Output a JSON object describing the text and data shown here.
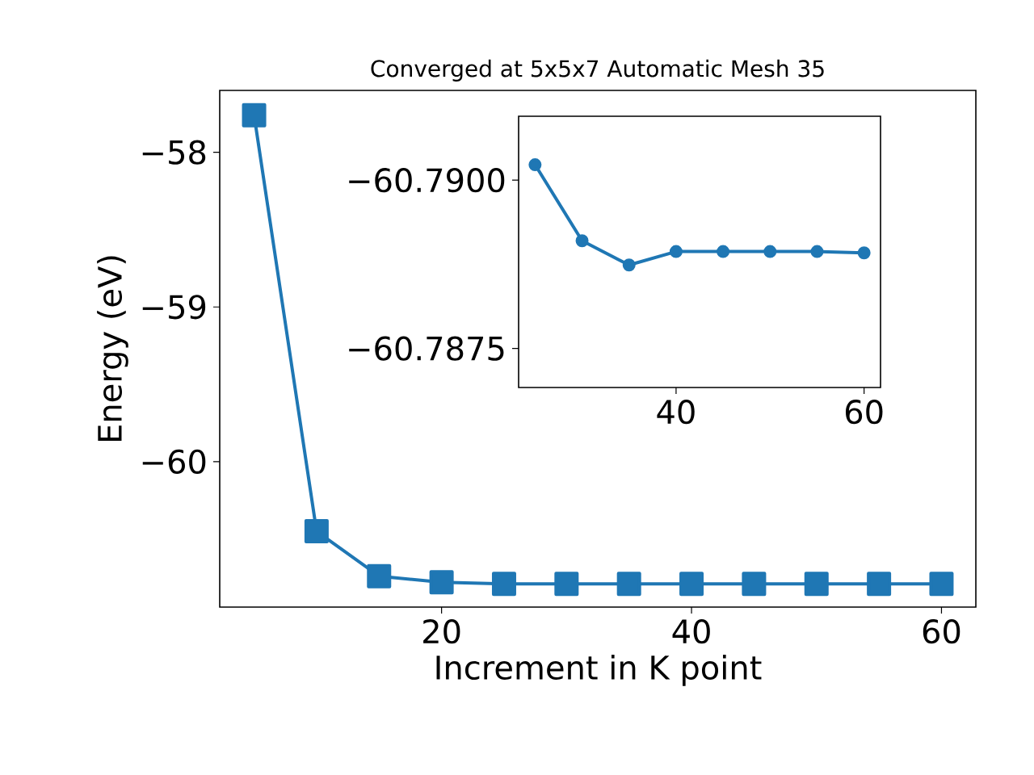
{
  "chart_data": [
    {
      "type": "line",
      "title": "Converged at 5x5x7 Automatic Mesh 35",
      "xlabel": "Increment in K point",
      "ylabel": "Energy (eV)",
      "marker": "square",
      "color": "#1f77b4",
      "x": [
        5,
        10,
        15,
        20,
        25,
        30,
        35,
        40,
        45,
        50,
        55,
        60
      ],
      "values": [
        -57.76,
        -60.45,
        -60.74,
        -60.78,
        -60.79,
        -60.79,
        -60.79,
        -60.79,
        -60.79,
        -60.79,
        -60.79,
        -60.79
      ],
      "xlim": [
        2.25,
        62.75
      ],
      "ylim": [
        -60.94,
        -57.6
      ],
      "xticks": [
        20,
        40,
        60
      ],
      "yticks": [
        {
          "value": -60,
          "label": "−60"
        },
        {
          "value": -59,
          "label": "−59"
        },
        {
          "value": -58,
          "label": "−58"
        }
      ]
    },
    {
      "type": "line",
      "marker": "circle",
      "color": "#1f77b4",
      "x": [
        25,
        30,
        35,
        40,
        45,
        50,
        55,
        60
      ],
      "values": [
        -60.79023,
        -60.7891,
        -60.78874,
        -60.78894,
        -60.78894,
        -60.78894,
        -60.78894,
        -60.78892
      ],
      "xlim": [
        23.25,
        61.75
      ],
      "ylim": [
        -60.78692,
        -60.79095
      ],
      "xticks": [
        40,
        60
      ],
      "yticks": [
        {
          "value": -60.79,
          "label": "−60.7900"
        },
        {
          "value": -60.7875,
          "label": "−60.7875"
        }
      ]
    }
  ]
}
